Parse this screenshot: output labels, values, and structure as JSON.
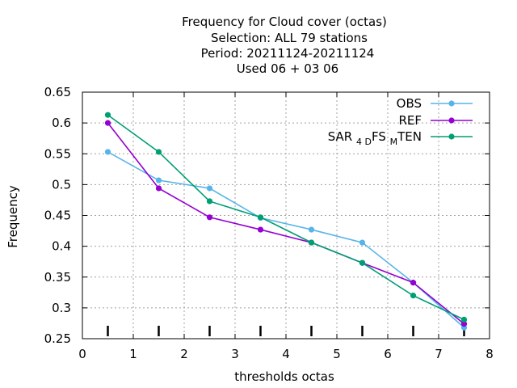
{
  "chart_data": {
    "type": "line",
    "title_lines": [
      "Frequency  for Cloud cover (octas)",
      "Selection: ALL     79 stations",
      "Period: 20211124-20211124",
      "Used  06  + 03  06"
    ],
    "xlabel": "thresholds octas",
    "ylabel": "Frequency",
    "xlim": [
      0,
      8
    ],
    "ylim": [
      0.25,
      0.65
    ],
    "x_ticks": [
      0,
      1,
      2,
      3,
      4,
      5,
      6,
      7,
      8
    ],
    "y_ticks": [
      0.25,
      0.3,
      0.35,
      0.4,
      0.45,
      0.5,
      0.55,
      0.6,
      0.65
    ],
    "x_tick_labels": [
      "0",
      "1",
      "2",
      "3",
      "4",
      "5",
      "6",
      "7",
      "8"
    ],
    "y_tick_labels": [
      "0.25",
      "0.3",
      "0.35",
      "0.4",
      "0.45",
      "0.5",
      "0.55",
      "0.6",
      "0.65"
    ],
    "grid": true,
    "legend_position": "top-right",
    "threshold_markers": [
      0.5,
      1.5,
      2.5,
      3.5,
      4.5,
      5.5,
      6.5,
      7.5
    ],
    "x": [
      0.5,
      1.5,
      2.5,
      3.5,
      4.5,
      5.5,
      6.5,
      7.5
    ],
    "series": [
      {
        "name": "OBS",
        "color": "#56b4e9",
        "values": [
          0.553,
          0.507,
          0.494,
          0.446,
          0.427,
          0.406,
          0.341,
          0.268
        ]
      },
      {
        "name": "REF",
        "color": "#9400d3",
        "values": [
          0.6,
          0.494,
          0.447,
          0.427,
          0.406,
          0.373,
          0.341,
          0.274
        ]
      },
      {
        "name_parts": [
          "SAR",
          "4",
          "D",
          "FS",
          "M",
          "TEN"
        ],
        "color": "#009e73",
        "values": [
          0.613,
          0.553,
          0.473,
          0.447,
          0.406,
          0.373,
          0.32,
          0.281
        ]
      }
    ]
  }
}
